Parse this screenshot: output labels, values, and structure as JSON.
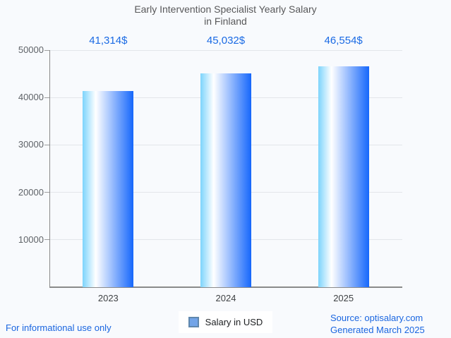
{
  "page": {
    "background": "#f8fafd"
  },
  "title": {
    "line1": "Early Intervention Specialist Yearly Salary",
    "line2": "in Finland"
  },
  "legend": {
    "label": "Salary in USD"
  },
  "footer": {
    "left": "For informational use only",
    "source": "Source: optisalary.com",
    "generated": "Generated March 2025"
  },
  "colors": {
    "accent_blue": "#1a66e0",
    "value_label_blue": "#1a6ae4",
    "title_text": "#58585a",
    "axis_text": "#5f6368",
    "x_label_text": "#3f4245",
    "gridline": "#e3e6ea",
    "axis_line": "#8a8a8a",
    "tick": "#9e9e9e",
    "legend_marker_fill": "#72a4e8",
    "legend_marker_border": "#5f87ad",
    "legend_background": "#ffffff"
  },
  "chart_data": {
    "type": "bar",
    "title": "Early Intervention Specialist Yearly Salary in Finland",
    "categories": [
      "2023",
      "2024",
      "2025"
    ],
    "series": [
      {
        "name": "Salary in USD",
        "values": [
          41314,
          45032,
          46554
        ]
      }
    ],
    "value_labels": [
      "41,314$",
      "45,032$",
      "46,554$"
    ],
    "xlabel": "",
    "ylabel": "",
    "ylim": [
      0,
      50000
    ],
    "yticks": [
      10000,
      20000,
      30000,
      40000,
      50000
    ],
    "grid": true,
    "legend_position": "bottom",
    "bar_gradient": [
      "#7dd4fc",
      "#ffffff",
      "#1667fb"
    ],
    "bar_gradient_white_stop_pct": 26
  }
}
